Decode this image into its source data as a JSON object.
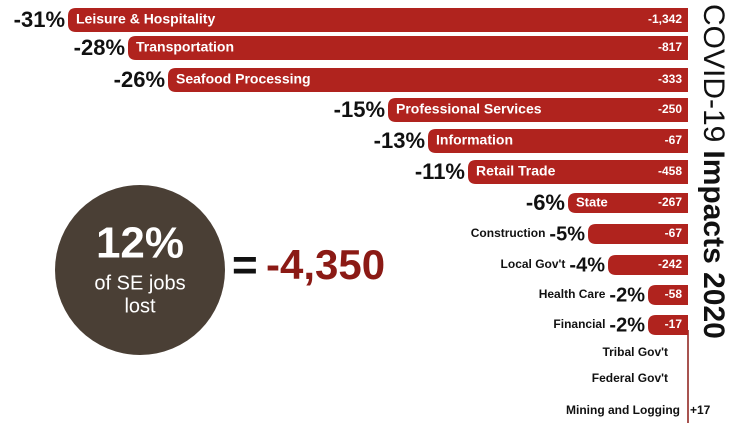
{
  "chart_data": {
    "type": "bar",
    "title": "COVID-19",
    "title_bold": "Impacts 2020",
    "categories": [
      "Leisure & Hospitality",
      "Transportation",
      "Seafood Processing",
      "Professional Services",
      "Information",
      "Retail Trade",
      "State",
      "Construction",
      "Local Gov't",
      "Health Care",
      "Financial",
      "Tribal Gov't",
      "Federal Gov't",
      "Mining and Logging"
    ],
    "values": [
      -31,
      -28,
      -26,
      -15,
      -13,
      -11,
      -6,
      -5,
      -4,
      -2,
      -2,
      null,
      null,
      null
    ],
    "value_labels": [
      "-31%",
      "-28%",
      "-26%",
      "-15%",
      "-13%",
      "-11%",
      "-6%",
      "-5%",
      "-4%",
      "-2%",
      "-2%",
      null,
      null,
      null
    ],
    "jobs": [
      -1342,
      -817,
      -333,
      -250,
      -67,
      -458,
      -267,
      -67,
      -242,
      -58,
      -17,
      null,
      null,
      17
    ],
    "jobs_labels": [
      "-1,342",
      "-817",
      "-333",
      "-250",
      "-67",
      "-458",
      "-267",
      "-67",
      "-242",
      "-58",
      "-17",
      null,
      null,
      "+17"
    ],
    "color": "#b0231e",
    "xlim": [
      -31,
      0
    ],
    "callout": {
      "percent": 12,
      "percent_label": "12%",
      "lines": [
        "of SE jobs",
        "lost"
      ],
      "equals": "=",
      "total": -4350,
      "total_label": "-4,350"
    }
  }
}
